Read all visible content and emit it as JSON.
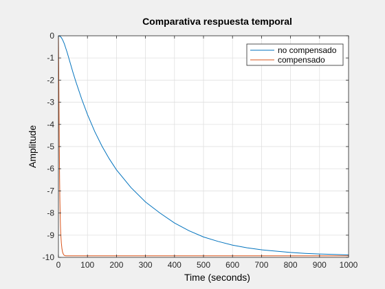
{
  "chart_data": {
    "type": "line",
    "title": "Comparativa respuesta temporal",
    "xlabel": "Time (seconds)",
    "ylabel": "Amplitude",
    "xlim": [
      0,
      1000
    ],
    "ylim": [
      -10,
      0
    ],
    "xticks": [
      0,
      100,
      200,
      300,
      400,
      500,
      600,
      700,
      800,
      900,
      1000
    ],
    "yticks": [
      0,
      -1,
      -2,
      -3,
      -4,
      -5,
      -6,
      -7,
      -8,
      -9,
      -10
    ],
    "grid": true,
    "legend_position": "top-right",
    "series": [
      {
        "name": "no compensado",
        "color": "#0072bd",
        "x": [
          0,
          5,
          10,
          15,
          20,
          30,
          40,
          50,
          60,
          80,
          100,
          125,
          150,
          175,
          200,
          250,
          300,
          350,
          400,
          450,
          500,
          550,
          600,
          650,
          700,
          750,
          800,
          850,
          900,
          950,
          1000
        ],
        "y": [
          0,
          -0.02,
          -0.08,
          -0.2,
          -0.35,
          -0.75,
          -1.2,
          -1.65,
          -2.07,
          -2.85,
          -3.55,
          -4.32,
          -4.98,
          -5.55,
          -6.05,
          -6.85,
          -7.5,
          -8.0,
          -8.45,
          -8.8,
          -9.08,
          -9.28,
          -9.45,
          -9.57,
          -9.66,
          -9.72,
          -9.78,
          -9.82,
          -9.85,
          -9.87,
          -9.89
        ]
      },
      {
        "name": "compensado",
        "color": "#d95319",
        "x": [
          0,
          1,
          2,
          3,
          4,
          5,
          6,
          7,
          8,
          10,
          12,
          14,
          16,
          18,
          20,
          25,
          30,
          40,
          60,
          100,
          200,
          400,
          600,
          800,
          1000
        ],
        "y": [
          0,
          -1.4,
          -3.2,
          -5.0,
          -6.4,
          -7.4,
          -8.1,
          -8.6,
          -8.95,
          -9.35,
          -9.6,
          -9.75,
          -9.83,
          -9.88,
          -9.91,
          -9.93,
          -9.93,
          -9.93,
          -9.93,
          -9.93,
          -9.93,
          -9.93,
          -9.93,
          -9.93,
          -9.93
        ]
      }
    ]
  }
}
